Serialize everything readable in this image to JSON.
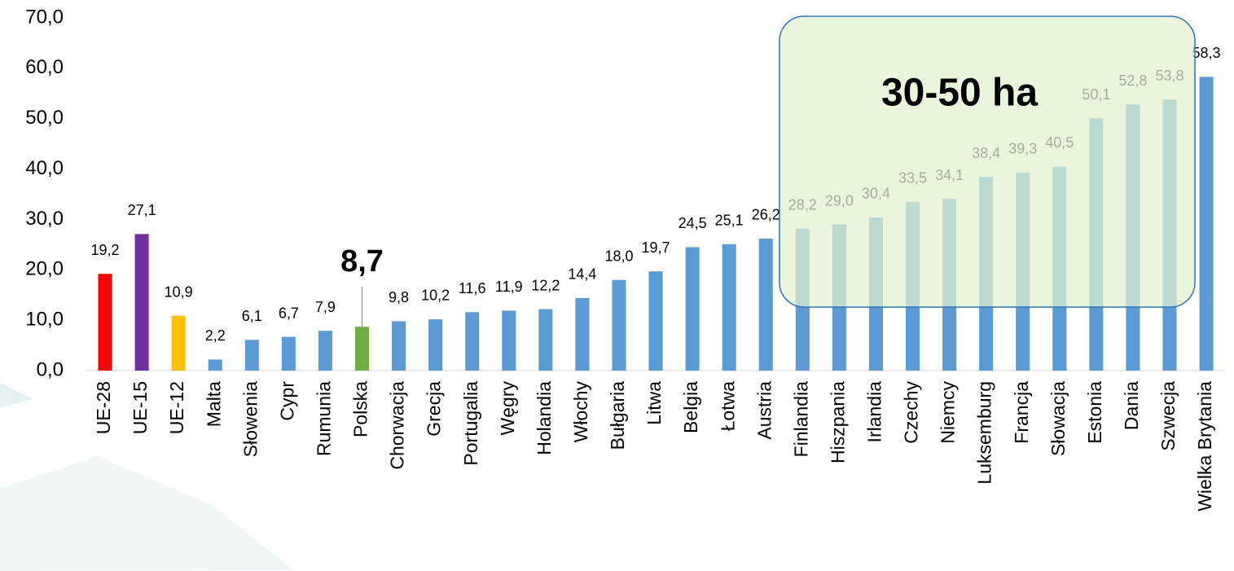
{
  "chart_data": {
    "type": "bar",
    "categories": [
      "UE-28",
      "UE-15",
      "UE-12",
      "Malta",
      "Słowenia",
      "Cypr",
      "Rumunia",
      "Polska",
      "Chorwacja",
      "Grecja",
      "Portugalia",
      "Węgry",
      "Holandia",
      "Włochy",
      "Bułgaria",
      "Litwa",
      "Belgia",
      "Łotwa",
      "Austria",
      "Finlandia",
      "Hiszpania",
      "Irlandia",
      "Czechy",
      "Niemcy",
      "Luksemburg",
      "Francja",
      "Słowacja",
      "Estonia",
      "Dania",
      "Szwecja",
      "Wielka Brytania"
    ],
    "values": [
      19.2,
      27.1,
      10.9,
      2.2,
      6.1,
      6.7,
      7.9,
      8.7,
      9.8,
      10.2,
      11.6,
      11.9,
      12.2,
      14.4,
      18.0,
      19.7,
      24.5,
      25.1,
      26.2,
      28.2,
      29.0,
      30.4,
      33.5,
      34.1,
      38.4,
      39.3,
      40.5,
      50.1,
      52.8,
      53.8,
      58.3
    ],
    "value_labels": [
      "19,2",
      "27,1",
      "10,9",
      "2,2",
      "6,1",
      "6,7",
      "7,9",
      "8,7",
      "9,8",
      "10,2",
      "11,6",
      "11,9",
      "12,2",
      "14,4",
      "18,0",
      "19,7",
      "24,5",
      "25,1",
      "26,2",
      "28,2",
      "29,0",
      "30,4",
      "33,5",
      "34,1",
      "38,4",
      "39,3",
      "40,5",
      "50,1",
      "52,8",
      "53,8",
      "58,3"
    ],
    "colors": [
      "#ff0000",
      "#7030a0",
      "#ffc000",
      "#5b9bd5",
      "#5b9bd5",
      "#5b9bd5",
      "#5b9bd5",
      "#70ad47",
      "#5b9bd5",
      "#5b9bd5",
      "#5b9bd5",
      "#5b9bd5",
      "#5b9bd5",
      "#5b9bd5",
      "#5b9bd5",
      "#5b9bd5",
      "#5b9bd5",
      "#5b9bd5",
      "#5b9bd5",
      "#5b9bd5",
      "#5b9bd5",
      "#5b9bd5",
      "#5b9bd5",
      "#5b9bd5",
      "#5b9bd5",
      "#5b9bd5",
      "#5b9bd5",
      "#5b9bd5",
      "#5b9bd5",
      "#5b9bd5",
      "#5b9bd5"
    ],
    "highlight": "Polska",
    "ylim": [
      0,
      70
    ],
    "yticks": [
      {
        "value": 0,
        "label": "0,0"
      },
      {
        "value": 10,
        "label": "10,0"
      },
      {
        "value": 20,
        "label": "20,0"
      },
      {
        "value": 30,
        "label": "30,0"
      },
      {
        "value": 40,
        "label": "40,0"
      },
      {
        "value": 50,
        "label": "50,0"
      },
      {
        "value": 60,
        "label": "60,0"
      },
      {
        "value": 70,
        "label": "70,0"
      }
    ],
    "annotation": "30-50 ha"
  }
}
